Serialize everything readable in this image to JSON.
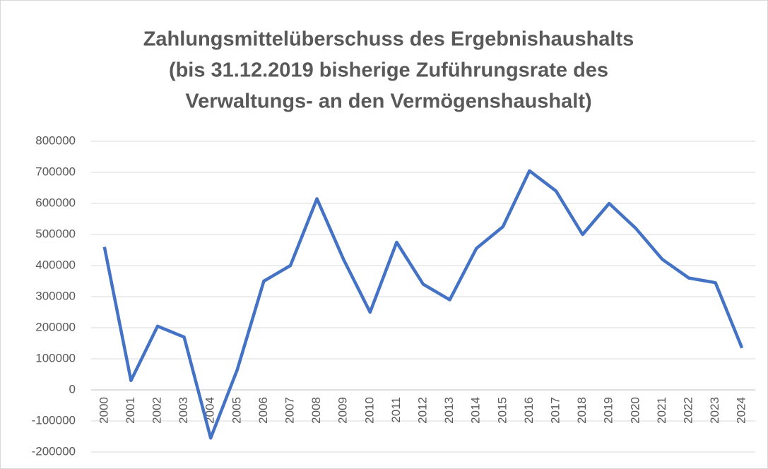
{
  "chart_data": {
    "type": "line",
    "title": [
      "Zahlungsmittelüberschuss des Ergebnishaushalts",
      "(bis 31.12.2019 bisherige Zuführungsrate des",
      "Verwaltungs- an den Vermögenshaushalt)"
    ],
    "categories": [
      "2000",
      "2001",
      "2002",
      "2003",
      "2004",
      "2005",
      "2006",
      "2007",
      "2008",
      "2009",
      "2010",
      "2011",
      "2012",
      "2013",
      "2014",
      "2015",
      "2016",
      "2017",
      "2018",
      "2019",
      "2020",
      "2021",
      "2022",
      "2023",
      "2024"
    ],
    "series": [
      {
        "color": "#4472c4",
        "values": [
          460000,
          30000,
          205000,
          170000,
          -155000,
          65000,
          350000,
          400000,
          615000,
          420000,
          250000,
          475000,
          340000,
          290000,
          455000,
          525000,
          705000,
          640000,
          500000,
          600000,
          520000,
          420000,
          360000,
          345000,
          135000
        ]
      }
    ],
    "ylim": [
      -200000,
      800000
    ],
    "yticks": [
      -200000,
      -100000,
      0,
      100000,
      200000,
      300000,
      400000,
      500000,
      600000,
      700000,
      800000
    ],
    "grid": true
  }
}
